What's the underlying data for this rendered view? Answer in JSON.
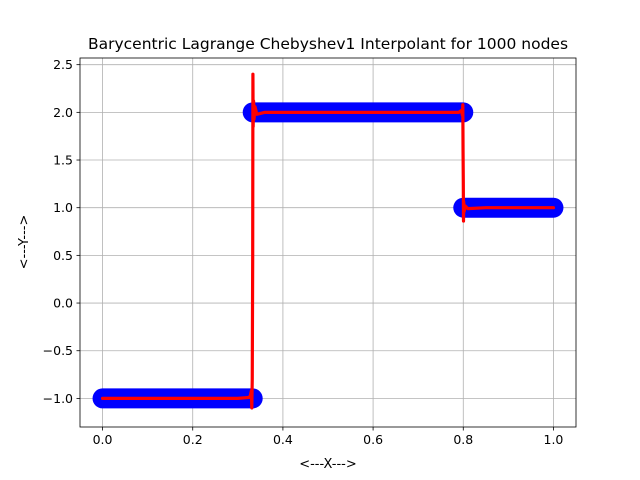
{
  "chart_data": {
    "type": "line",
    "title": "Barycentric Lagrange Chebyshev1 Interpolant for 1000 nodes",
    "xlabel": "<---X--->",
    "ylabel": "<---Y--->",
    "xlim": [
      -0.05,
      1.05
    ],
    "ylim": [
      -1.3,
      2.57
    ],
    "xticks": [
      0.0,
      0.2,
      0.4,
      0.6,
      0.8,
      1.0
    ],
    "xtick_labels": [
      "0.0",
      "0.2",
      "0.4",
      "0.6",
      "0.8",
      "1.0"
    ],
    "yticks": [
      -1.0,
      -0.5,
      0.0,
      0.5,
      1.0,
      1.5,
      2.0,
      2.5
    ],
    "ytick_labels": [
      "−1.0",
      "−0.5",
      "0.0",
      "0.5",
      "1.0",
      "1.5",
      "2.0",
      "2.5"
    ],
    "grid": true,
    "series": [
      {
        "color": "#0000ff",
        "style": "thick-markers",
        "segments": [
          {
            "x": [
              0.0,
              0.333
            ],
            "y": [
              -1.0,
              -1.0
            ]
          },
          {
            "x": [
              0.333,
              0.8
            ],
            "y": [
              2.0,
              2.0
            ]
          },
          {
            "x": [
              0.8,
              1.0
            ],
            "y": [
              1.0,
              1.0
            ]
          }
        ]
      },
      {
        "color": "#ff0000",
        "style": "line",
        "x": [
          0.0,
          0.3,
          0.325,
          0.328,
          0.33,
          0.331,
          0.332,
          0.333,
          0.3335,
          0.334,
          0.335,
          0.336,
          0.338,
          0.342,
          0.36,
          0.5,
          0.7,
          0.79,
          0.796,
          0.798,
          0.799,
          0.7995,
          0.8,
          0.8005,
          0.801,
          0.802,
          0.804,
          0.81,
          0.85,
          1.0
        ],
        "y": [
          -1.0,
          -1.0,
          -0.99,
          -0.97,
          -0.92,
          -1.1,
          -0.8,
          0.5,
          2.4,
          1.85,
          2.12,
          1.93,
          2.06,
          1.98,
          2.0,
          2.0,
          2.0,
          2.0,
          2.02,
          1.97,
          2.08,
          1.6,
          1.3,
          0.86,
          1.06,
          0.96,
          1.02,
          0.99,
          1.0,
          1.0
        ]
      }
    ]
  }
}
